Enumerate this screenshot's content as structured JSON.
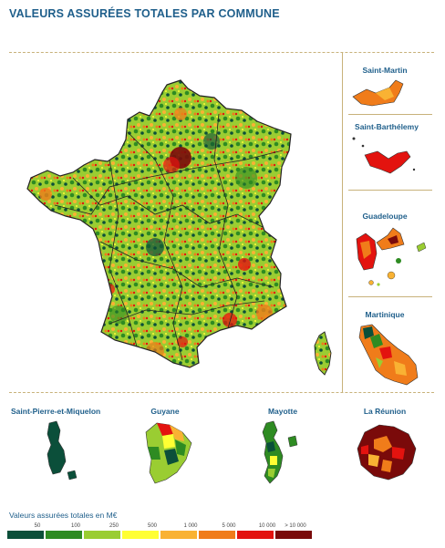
{
  "title": "VALEURS ASSURÉES TOTALES PAR COMMUNE",
  "regions": {
    "saint_martin": "Saint-Martin",
    "saint_barthelemy": "Saint-Barthélemy",
    "guadeloupe": "Guadeloupe",
    "martinique": "Martinique",
    "saint_pierre": "Saint-Pierre-et-Miquelon",
    "guyane": "Guyane",
    "mayotte": "Mayotte",
    "reunion": "La Réunion"
  },
  "legend": {
    "title": "Valeurs assurées totales en M€",
    "ticks": [
      "50",
      "100",
      "250",
      "500",
      "1 000",
      "5 000",
      "10 000",
      "> 10 000"
    ],
    "colors": [
      "#0b4f3a",
      "#2e8b22",
      "#9acd32",
      "#ffff33",
      "#f9b233",
      "#f07c1a",
      "#e3130f",
      "#7a0a0a"
    ]
  },
  "colors": {
    "title": "#1f5f8b",
    "divider": "#c8b27a",
    "border": "#222222"
  }
}
